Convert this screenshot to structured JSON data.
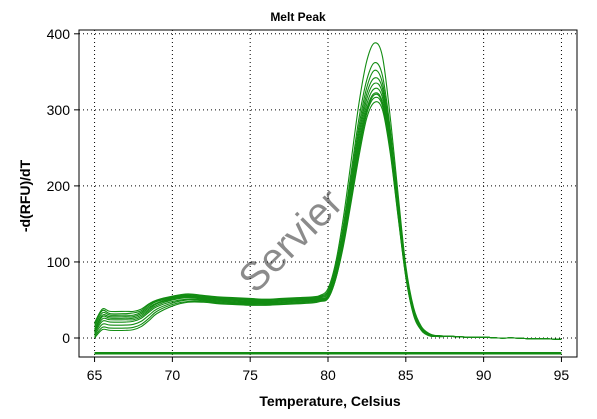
{
  "chart_data": {
    "type": "line",
    "title": "Melt Peak",
    "xlabel": "Temperature, Celsius",
    "ylabel": "-d(RFU)/dT",
    "xlim": [
      64,
      96
    ],
    "ylim": [
      -25,
      405
    ],
    "xticks": [
      65,
      70,
      75,
      80,
      85,
      90,
      95
    ],
    "yticks": [
      0,
      100,
      200,
      300,
      400
    ],
    "grid": true,
    "line_color": "#128c12",
    "baseline_color": "#128c12",
    "watermark": "Servier",
    "x": [
      65,
      65.5,
      66,
      67,
      67.5,
      68,
      68.5,
      69,
      70,
      71,
      72,
      73,
      74,
      75,
      76,
      77,
      78,
      79,
      79.5,
      80,
      80.5,
      81,
      81.5,
      82,
      82.5,
      83,
      83.5,
      84,
      84.5,
      85,
      85.5,
      86,
      86.5,
      87,
      88,
      89,
      90,
      91,
      92,
      93,
      94,
      95
    ],
    "series": [
      {
        "values": [
          20,
          38,
          35,
          35,
          35,
          38,
          45,
          50,
          55,
          58,
          56,
          54,
          53,
          52,
          51,
          52,
          53,
          54,
          56,
          65,
          100,
          160,
          235,
          310,
          365,
          388,
          370,
          290,
          190,
          95,
          40,
          15,
          6,
          3,
          2,
          1,
          1,
          0,
          0,
          -1,
          -1,
          -2
        ]
      },
      {
        "values": [
          15,
          33,
          30,
          30,
          30,
          34,
          42,
          48,
          53,
          56,
          54,
          52,
          51,
          50,
          50,
          51,
          52,
          53,
          55,
          62,
          95,
          150,
          220,
          290,
          340,
          362,
          345,
          275,
          180,
          90,
          38,
          14,
          5,
          3,
          2,
          1,
          1,
          0,
          0,
          -1,
          -1,
          -2
        ]
      },
      {
        "values": [
          12,
          30,
          28,
          28,
          28,
          32,
          40,
          46,
          52,
          55,
          53,
          51,
          50,
          49,
          49,
          50,
          51,
          52,
          54,
          60,
          92,
          145,
          212,
          280,
          330,
          352,
          335,
          268,
          175,
          88,
          36,
          13,
          5,
          3,
          2,
          1,
          1,
          0,
          0,
          -1,
          -1,
          -2
        ]
      },
      {
        "values": [
          10,
          28,
          26,
          26,
          26,
          30,
          38,
          45,
          51,
          54,
          52,
          50,
          49,
          48,
          48,
          49,
          50,
          51,
          53,
          58,
          88,
          140,
          205,
          272,
          322,
          342,
          328,
          262,
          170,
          85,
          35,
          12,
          4,
          3,
          2,
          1,
          1,
          0,
          0,
          -1,
          -1,
          -2
        ]
      },
      {
        "values": [
          8,
          25,
          24,
          24,
          24,
          28,
          36,
          43,
          50,
          53,
          51,
          49,
          48,
          47,
          47,
          48,
          49,
          50,
          52,
          56,
          86,
          136,
          200,
          265,
          315,
          335,
          322,
          258,
          168,
          84,
          34,
          12,
          4,
          3,
          2,
          1,
          1,
          0,
          0,
          -1,
          -1,
          -2
        ]
      },
      {
        "values": [
          6,
          22,
          21,
          21,
          22,
          26,
          34,
          41,
          48,
          51,
          50,
          48,
          47,
          46,
          46,
          47,
          48,
          49,
          51,
          55,
          84,
          132,
          195,
          258,
          308,
          328,
          316,
          254,
          166,
          83,
          33,
          11,
          4,
          2,
          2,
          1,
          1,
          0,
          0,
          -1,
          -1,
          -2
        ]
      },
      {
        "values": [
          4,
          18,
          17,
          17,
          18,
          22,
          30,
          38,
          46,
          50,
          49,
          47,
          46,
          45,
          45,
          46,
          47,
          48,
          50,
          54,
          82,
          128,
          190,
          252,
          302,
          322,
          310,
          250,
          164,
          82,
          32,
          11,
          4,
          2,
          2,
          1,
          1,
          0,
          0,
          -1,
          -1,
          -2
        ]
      },
      {
        "values": [
          2,
          14,
          13,
          13,
          14,
          18,
          26,
          35,
          44,
          48,
          48,
          46,
          45,
          44,
          44,
          45,
          46,
          47,
          49,
          53,
          80,
          125,
          185,
          246,
          296,
          316,
          305,
          246,
          162,
          81,
          31,
          10,
          3,
          2,
          2,
          1,
          1,
          0,
          0,
          -1,
          -1,
          -2
        ]
      },
      {
        "values": [
          0,
          11,
          10,
          10,
          11,
          15,
          23,
          32,
          42,
          47,
          47,
          45,
          44,
          43,
          43,
          44,
          45,
          46,
          48,
          52,
          78,
          122,
          180,
          240,
          290,
          310,
          300,
          243,
          160,
          80,
          30,
          10,
          3,
          2,
          2,
          1,
          1,
          0,
          0,
          -1,
          -1,
          -2
        ]
      },
      {
        "values": [
          18,
          36,
          32,
          32,
          33,
          36,
          44,
          49,
          54,
          57,
          55,
          53,
          52,
          51,
          50,
          50,
          50,
          49,
          50,
          52,
          78,
          125,
          185,
          248,
          298,
          320,
          308,
          248,
          163,
          82,
          32,
          11,
          4,
          2,
          2,
          1,
          1,
          0,
          0,
          -1,
          -1,
          -2
        ]
      }
    ],
    "baseline": {
      "x": [
        65,
        95
      ],
      "values": [
        -20,
        -20
      ]
    }
  }
}
